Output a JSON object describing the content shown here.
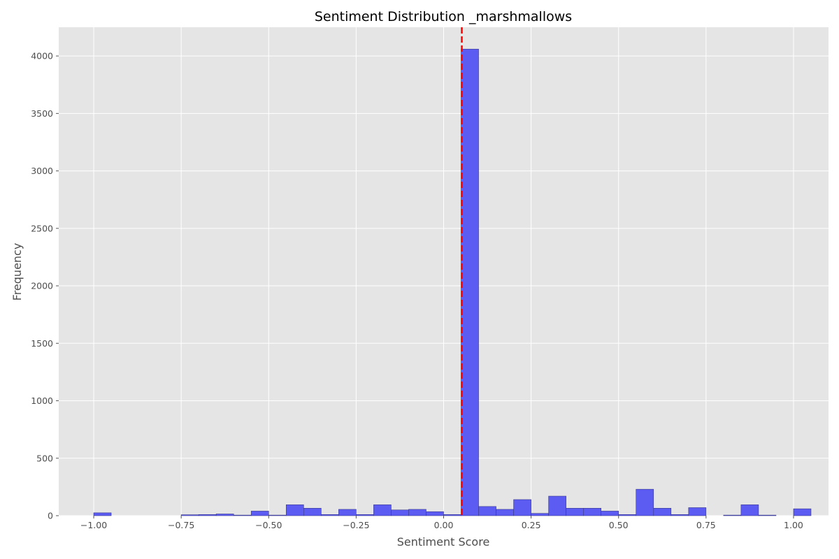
{
  "chart_data": {
    "type": "bar",
    "title": "Sentiment Distribution _marshmallows",
    "xlabel": "Sentiment Score",
    "ylabel": "Frequency",
    "xlim": [
      -1.1,
      1.1
    ],
    "ylim": [
      0,
      4250
    ],
    "grid": true,
    "legend": "none",
    "x_ticks": [
      -1.0,
      -0.75,
      -0.5,
      -0.25,
      0.0,
      0.25,
      0.5,
      0.75,
      1.0
    ],
    "x_tick_labels": [
      "−1.00",
      "−0.75",
      "−0.50",
      "−0.25",
      "0.00",
      "0.25",
      "0.50",
      "0.75",
      "1.00"
    ],
    "y_ticks": [
      0,
      500,
      1000,
      1500,
      2000,
      2500,
      3000,
      3500,
      4000
    ],
    "y_tick_labels": [
      "0",
      "500",
      "1000",
      "1500",
      "2000",
      "2500",
      "3000",
      "3500",
      "4000"
    ],
    "bin_width": 0.05,
    "bin_edges_start": -1.0,
    "values": [
      25,
      0,
      0,
      0,
      0,
      8,
      10,
      15,
      5,
      40,
      5,
      95,
      65,
      10,
      55,
      10,
      95,
      50,
      55,
      35,
      10,
      4060,
      80,
      55,
      140,
      20,
      170,
      65,
      65,
      40,
      10,
      230,
      65,
      10,
      70,
      0,
      5,
      95,
      5,
      0,
      60
    ],
    "mean_line": {
      "x": 0.052,
      "color": "#ff0000",
      "style": "dashed"
    },
    "colors": {
      "bar_fill": "#5c5cf2",
      "bar_edge": "#3a3a8c",
      "plot_bg": "#e5e5e5",
      "grid": "#ffffff",
      "mean_line": "#ff0000"
    }
  }
}
